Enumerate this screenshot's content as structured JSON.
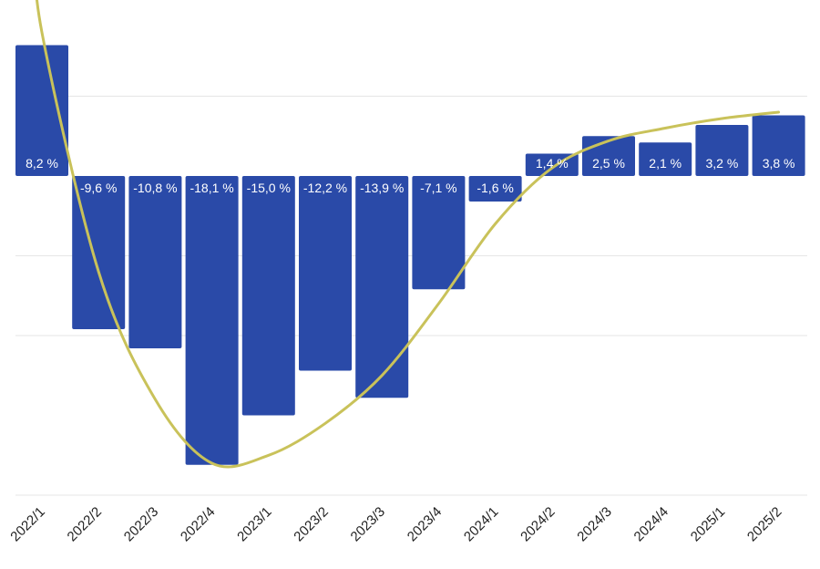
{
  "chart_data": {
    "type": "bar",
    "categories": [
      "2022/1",
      "2022/2",
      "2022/3",
      "2022/4",
      "2023/1",
      "2023/2",
      "2023/3",
      "2023/4",
      "2024/1",
      "2024/2",
      "2024/3",
      "2024/4",
      "2025/1",
      "2025/2"
    ],
    "values": [
      8.2,
      -9.6,
      -10.8,
      -18.1,
      -15.0,
      -12.2,
      -13.9,
      -7.1,
      -1.6,
      1.4,
      2.5,
      2.1,
      3.2,
      3.8
    ],
    "labels": [
      "8,2 %",
      "-9,6 %",
      "-10,8 %",
      "-18,1 %",
      "-15,0 %",
      "-12,2 %",
      "-13,9 %",
      "-7,1 %",
      "-1,6 %",
      "1,4 %",
      "2,5 %",
      "2,1 %",
      "3,2 %",
      "3,8 %"
    ],
    "ylim": [
      -20,
      10
    ],
    "gridlines": [
      5,
      -5,
      -10,
      -20
    ],
    "trend": {
      "type": "smoothed line",
      "values": [
        9,
        -6,
        -14,
        -18,
        -17.5,
        -15.5,
        -12.5,
        -8,
        -3,
        0.5,
        2.2,
        3,
        3.6,
        4
      ]
    },
    "colors": {
      "bar": "#2a4aa8",
      "trend": "#c9c25a",
      "label_inside": "#ffffff",
      "label_outside": "#111111",
      "grid": "#e6e6e6"
    },
    "title": "",
    "xlabel": "",
    "ylabel": ""
  }
}
